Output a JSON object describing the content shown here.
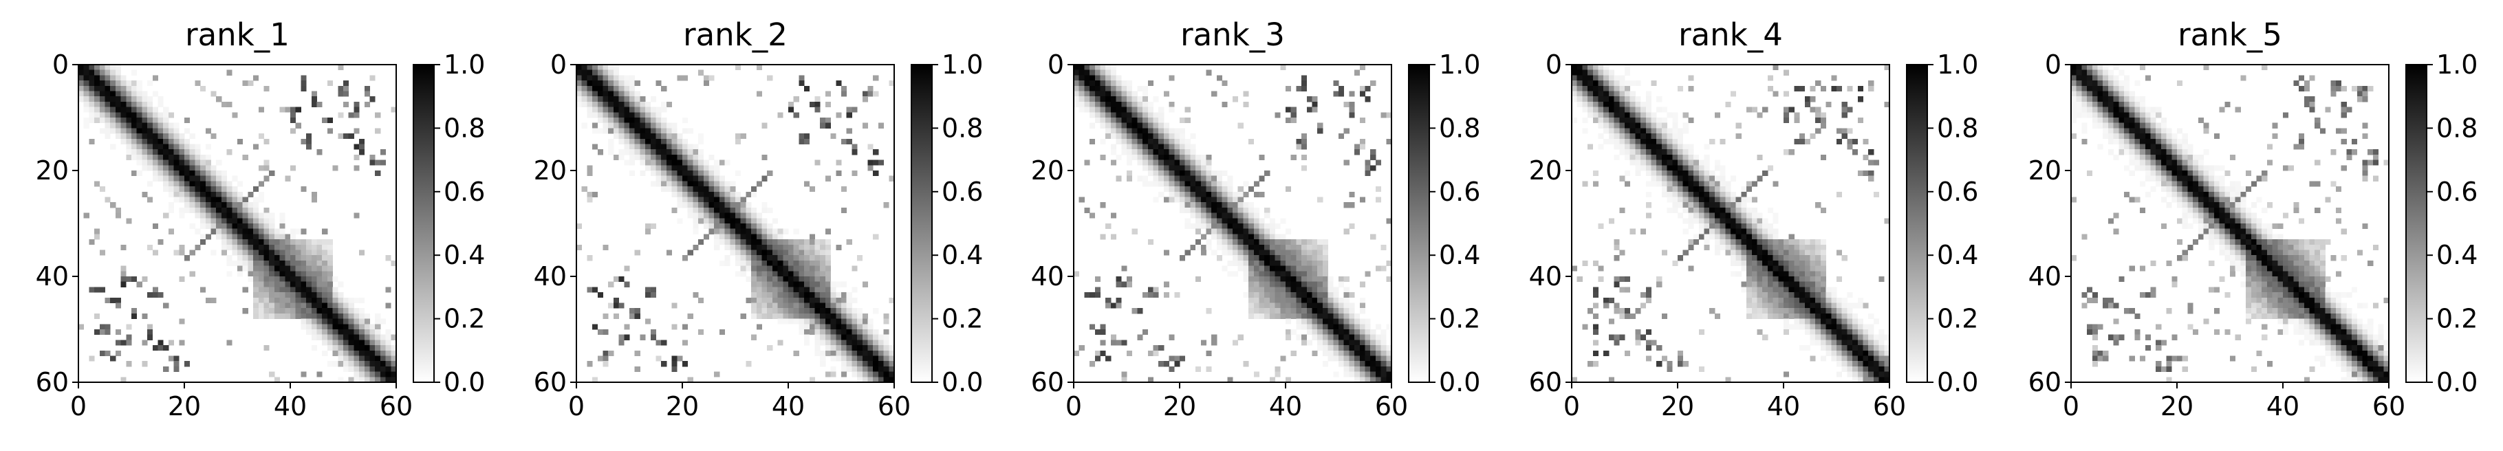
{
  "figure": {
    "panel_count": 5,
    "colormap": "Greys",
    "colors": {
      "background": "#ffffff",
      "frame": "#000000",
      "max": "#000000",
      "min": "#ffffff"
    }
  },
  "chart_data": [
    {
      "type": "heatmap",
      "title": "rank_1",
      "xlabel": "",
      "ylabel": "",
      "xlim": [
        0,
        60
      ],
      "ylim": [
        60,
        0
      ],
      "x_ticks": [
        "0",
        "20",
        "40",
        "60"
      ],
      "y_ticks": [
        "0",
        "20",
        "40",
        "60"
      ],
      "colorbar": {
        "range": [
          0.0,
          1.0
        ],
        "ticks": [
          "0.0",
          "0.2",
          "0.4",
          "0.6",
          "0.8",
          "1.0"
        ]
      },
      "grid": false,
      "matrix_size": 60,
      "diagonal_band_width": 2.6,
      "offdiag_intensity": 0.85
    },
    {
      "type": "heatmap",
      "title": "rank_2",
      "xlabel": "",
      "ylabel": "",
      "xlim": [
        0,
        60
      ],
      "ylim": [
        60,
        0
      ],
      "x_ticks": [
        "0",
        "20",
        "40",
        "60"
      ],
      "y_ticks": [
        "0",
        "20",
        "40",
        "60"
      ],
      "colorbar": {
        "range": [
          0.0,
          1.0
        ],
        "ticks": [
          "0.0",
          "0.2",
          "0.4",
          "0.6",
          "0.8",
          "1.0"
        ]
      },
      "grid": false,
      "matrix_size": 60,
      "diagonal_band_width": 2.5,
      "offdiag_intensity": 0.82
    },
    {
      "type": "heatmap",
      "title": "rank_3",
      "xlabel": "",
      "ylabel": "",
      "xlim": [
        0,
        60
      ],
      "ylim": [
        60,
        0
      ],
      "x_ticks": [
        "0",
        "20",
        "40",
        "60"
      ],
      "y_ticks": [
        "0",
        "20",
        "40",
        "60"
      ],
      "colorbar": {
        "range": [
          0.0,
          1.0
        ],
        "ticks": [
          "0.0",
          "0.2",
          "0.4",
          "0.6",
          "0.8",
          "1.0"
        ]
      },
      "grid": false,
      "matrix_size": 60,
      "diagonal_band_width": 2.5,
      "offdiag_intensity": 0.8
    },
    {
      "type": "heatmap",
      "title": "rank_4",
      "xlabel": "",
      "ylabel": "",
      "xlim": [
        0,
        60
      ],
      "ylim": [
        60,
        0
      ],
      "x_ticks": [
        "0",
        "20",
        "40",
        "60"
      ],
      "y_ticks": [
        "0",
        "20",
        "40",
        "60"
      ],
      "colorbar": {
        "range": [
          0.0,
          1.0
        ],
        "ticks": [
          "0.0",
          "0.2",
          "0.4",
          "0.6",
          "0.8",
          "1.0"
        ]
      },
      "grid": false,
      "matrix_size": 60,
      "diagonal_band_width": 2.4,
      "offdiag_intensity": 0.78
    },
    {
      "type": "heatmap",
      "title": "rank_5",
      "xlabel": "",
      "ylabel": "",
      "xlim": [
        0,
        60
      ],
      "ylim": [
        60,
        0
      ],
      "x_ticks": [
        "0",
        "20",
        "40",
        "60"
      ],
      "y_ticks": [
        "0",
        "20",
        "40",
        "60"
      ],
      "colorbar": {
        "range": [
          0.0,
          1.0
        ],
        "ticks": [
          "0.0",
          "0.2",
          "0.4",
          "0.6",
          "0.8",
          "1.0"
        ]
      },
      "grid": false,
      "matrix_size": 60,
      "diagonal_band_width": 2.3,
      "offdiag_intensity": 0.72
    }
  ]
}
